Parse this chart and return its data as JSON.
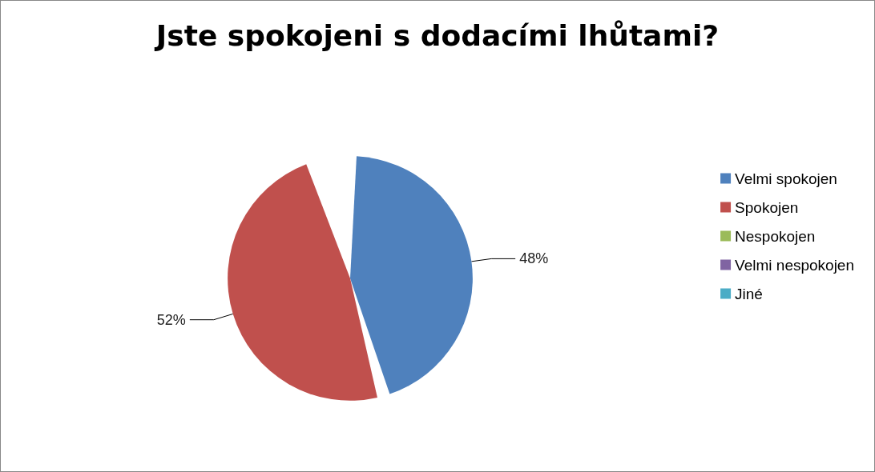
{
  "chart_data": {
    "type": "pie",
    "title": "Jste spokojeni s dodacími lhůtami?",
    "categories": [
      "Velmi spokojen",
      "Spokojen",
      "Nespokojen",
      "Velmi nespokojen",
      "Jiné"
    ],
    "values": [
      48,
      52,
      0,
      0,
      0
    ],
    "colors": [
      "#4f81bd",
      "#c0504d",
      "#9bbb59",
      "#8064a2",
      "#4bacc6"
    ],
    "value_labels": [
      "48%",
      "52%",
      null,
      null,
      null
    ],
    "legend": "right"
  }
}
